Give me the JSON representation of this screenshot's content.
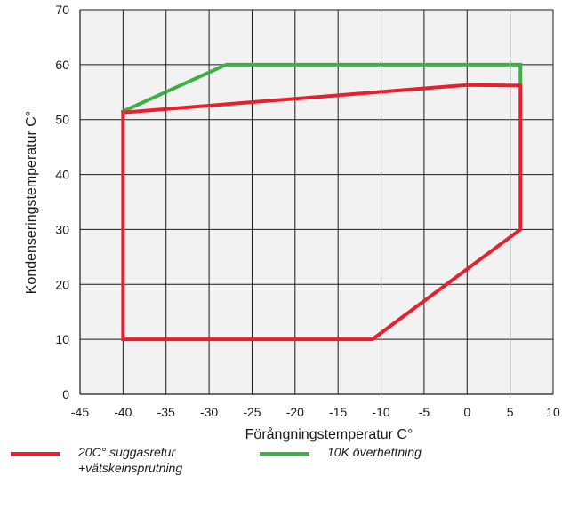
{
  "chart_data": {
    "type": "line",
    "xlabel": "Förångningstemperatur C°",
    "ylabel": "Kondenseringstemperatur C°",
    "xlim": [
      -45,
      10
    ],
    "ylim": [
      0,
      70
    ],
    "xticks": [
      "-45",
      "-40",
      "-35",
      "-30",
      "-25",
      "-20",
      "-15",
      "-10",
      "-5",
      "0",
      "5",
      "10"
    ],
    "yticks": [
      "0",
      "10",
      "20",
      "30",
      "40",
      "50",
      "60",
      "70"
    ],
    "grid": true,
    "legend_position": "bottom",
    "series": [
      {
        "name": "20C° suggasretur\n+vätskeinsprutning",
        "color": "#e8202e",
        "x": [
          -40,
          -40,
          -11,
          6.2,
          6.2,
          0,
          -40
        ],
        "y": [
          51.3,
          10,
          10,
          30,
          56.2,
          56.3,
          51.3
        ]
      },
      {
        "name": "10K överhettning",
        "color": "#3cb043",
        "x": [
          -40,
          -28,
          6.2,
          6.2
        ],
        "y": [
          51.5,
          60,
          60,
          56.2
        ]
      }
    ]
  }
}
